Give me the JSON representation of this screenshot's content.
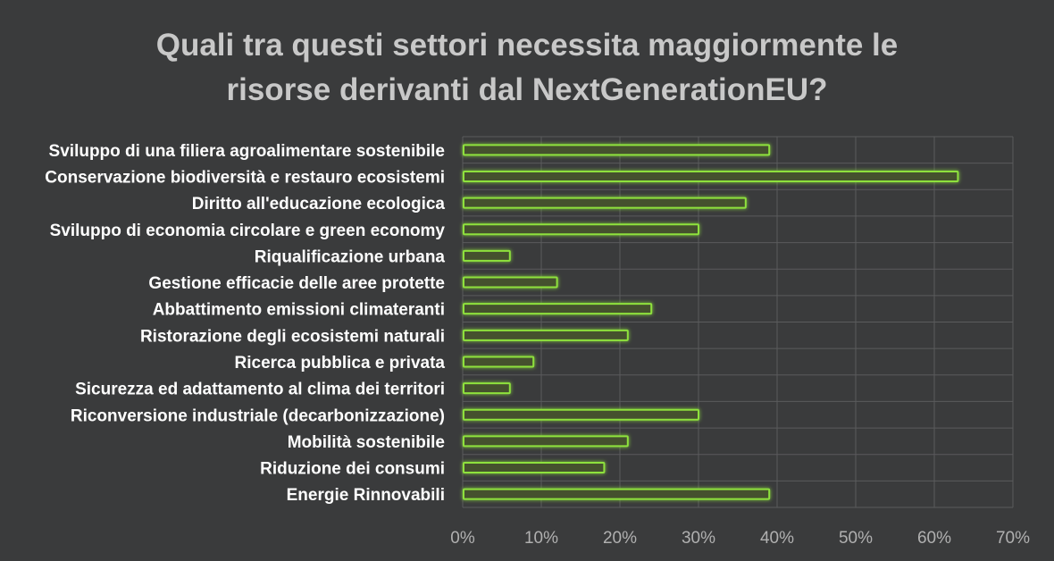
{
  "chart_data": {
    "type": "bar",
    "orientation": "horizontal",
    "title_lines": [
      "Quali tra questi settori necessita maggiormente le",
      "risorse derivanti dal NextGenerationEU?"
    ],
    "categories": [
      "Sviluppo di una filiera agroalimentare sostenibile",
      "Conservazione biodiversità e restauro ecosistemi",
      "Diritto all'educazione ecologica",
      "Sviluppo di economia circolare e green economy",
      "Riqualificazione urbana",
      "Gestione efficacie delle aree protette",
      "Abbattimento emissioni climateranti",
      "Ristorazione degli ecosistemi naturali",
      "Ricerca pubblica e privata",
      "Sicurezza ed adattamento al clima dei territori",
      "Riconversione industriale (decarbonizzazione)",
      "Mobilità sostenibile",
      "Riduzione dei consumi",
      "Energie Rinnovabili"
    ],
    "values": [
      39,
      63,
      36,
      30,
      6,
      12,
      24,
      21,
      9,
      6,
      30,
      21,
      18,
      39
    ],
    "x_ticks": [
      "0%",
      "10%",
      "20%",
      "30%",
      "40%",
      "50%",
      "60%",
      "70%"
    ],
    "xlim": [
      0,
      70
    ],
    "x_unit": "%",
    "grid": true,
    "colors": {
      "background": "#3a3b3c",
      "bar_fill": "#44512f",
      "bar_stroke": "#8ee13c",
      "glow": "#6fd12a",
      "grid": "#5a5b5c",
      "title": "#c8c8c8",
      "category_text": "#ffffff",
      "tick_text": "#b0b0b0"
    }
  }
}
